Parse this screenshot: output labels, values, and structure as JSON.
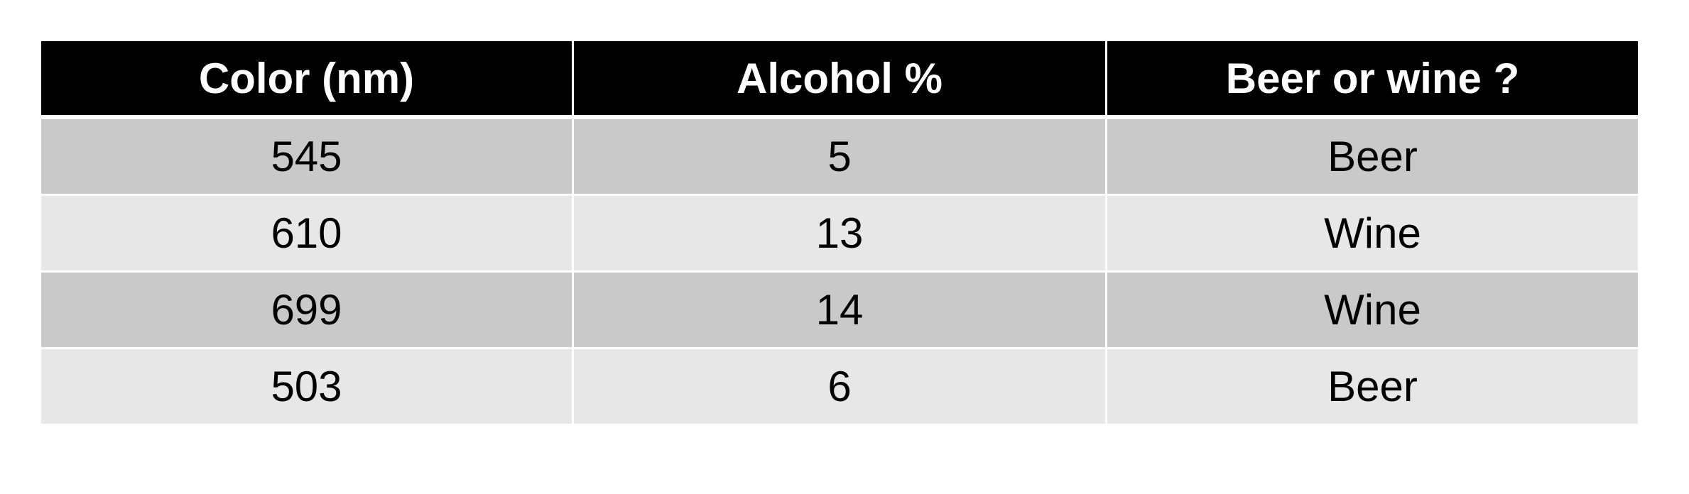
{
  "table": {
    "headers": [
      "Color (nm)",
      "Alcohol %",
      "Beer or wine ?"
    ],
    "rows": [
      [
        "545",
        "5",
        "Beer"
      ],
      [
        "610",
        "13",
        "Wine"
      ],
      [
        "699",
        "14",
        "Wine"
      ],
      [
        "503",
        "6",
        "Beer"
      ]
    ]
  },
  "colors": {
    "header_bg": "#000000",
    "header_text": "#ffffff",
    "row_dark": "#c9c9c9",
    "row_light": "#e7e7e7"
  }
}
